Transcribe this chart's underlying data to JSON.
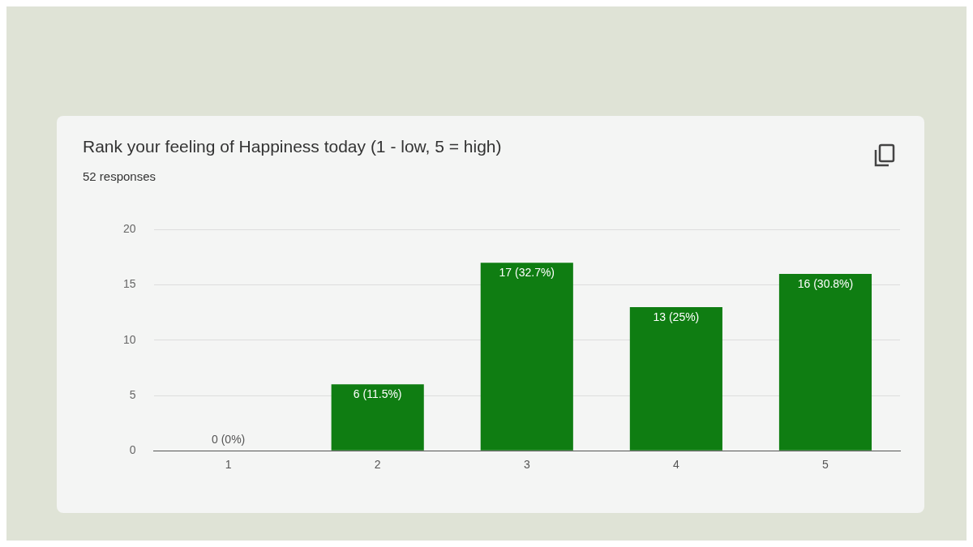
{
  "chart_data": {
    "type": "bar",
    "title": "Rank your feeling of Happiness today (1 - low, 5 = high)",
    "subtitle": "52 responses",
    "categories": [
      "1",
      "2",
      "3",
      "4",
      "5"
    ],
    "values": [
      0,
      6,
      17,
      13,
      16
    ],
    "value_labels": [
      "0 (0%)",
      "6 (11.5%)",
      "17 (32.7%)",
      "13 (25%)",
      "16 (30.8%)"
    ],
    "color": "#0f7d12",
    "ylim": [
      0,
      20
    ],
    "yticks": [
      0,
      5,
      10,
      15,
      20
    ],
    "grid": "y",
    "legend": false
  }
}
